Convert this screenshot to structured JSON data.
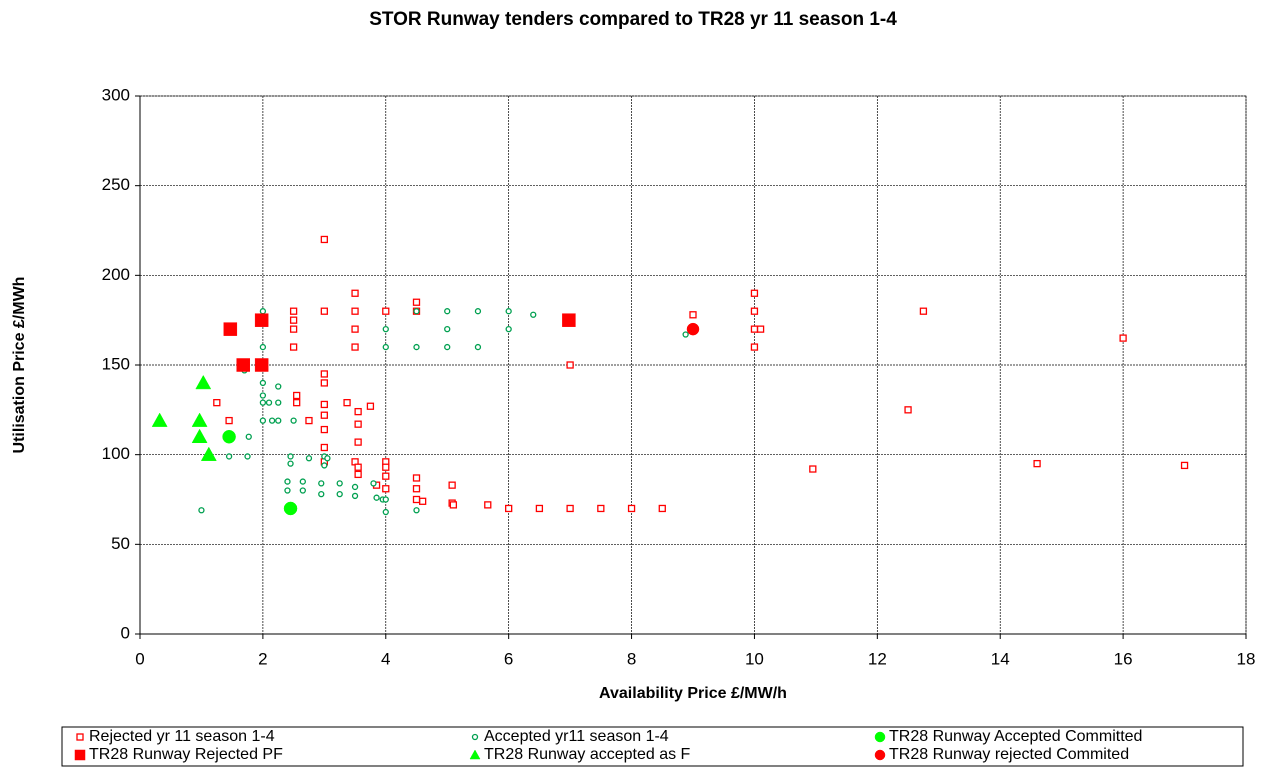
{
  "chart_data": {
    "type": "scatter",
    "title": "STOR Runway tenders compared to TR28 yr 11 season 1-4",
    "x_label": "Availability Price £/MW/h",
    "y_label": "Utilisation Price £/MWh",
    "xlim": [
      0,
      18
    ],
    "xticks": [
      0,
      2,
      4,
      6,
      8,
      10,
      12,
      14,
      16,
      18
    ],
    "ylim": [
      0,
      300
    ],
    "yticks": [
      0,
      50,
      100,
      150,
      200,
      250,
      300
    ],
    "grid": true,
    "legend": "bottom",
    "series": [
      {
        "name": "Rejected yr 11 season 1-4",
        "color": "#ff0000",
        "marker": "square",
        "filled": false,
        "size": 6,
        "x": [
          3,
          2.5,
          2.5,
          2.5,
          2.5,
          3,
          3.5,
          3.5,
          3.5,
          3.5,
          4,
          4.5,
          4.5,
          10,
          10,
          10,
          10.1,
          10,
          12.75,
          16,
          9,
          7,
          12.5,
          10.95,
          14.6,
          17,
          1.25,
          1.45,
          2.55,
          2.55,
          2.75,
          3,
          3,
          3,
          3,
          3,
          3,
          3,
          3.37,
          3.75,
          3.55,
          3.55,
          3.55,
          3.5,
          3.55,
          3.55,
          3.85,
          4,
          4,
          4,
          4,
          4.5,
          4.5,
          4.6,
          4.5,
          5.08,
          5.08,
          5.1,
          5.66,
          6,
          6.5,
          7,
          7.5,
          8,
          8.5
        ],
        "values": [
          220,
          180,
          175,
          170,
          160,
          180,
          190,
          180,
          170,
          160,
          180,
          185,
          180,
          190,
          180,
          170,
          170,
          160,
          180,
          165,
          178,
          150,
          125,
          92,
          95,
          94,
          129,
          119,
          133,
          129,
          119,
          145,
          140,
          128,
          122,
          114,
          104,
          96,
          129,
          127,
          124,
          117,
          107,
          96,
          93,
          89,
          83,
          96,
          93,
          88,
          81,
          87,
          81,
          74,
          75,
          83,
          73,
          72,
          72,
          70,
          70,
          70,
          70,
          70,
          70
        ]
      },
      {
        "name": "Accepted yr11 season 1-4",
        "color": "#00a050",
        "marker": "circle",
        "filled": false,
        "size": 5,
        "x": [
          1,
          1.45,
          1.77,
          1.7,
          1.75,
          2,
          2,
          2,
          2,
          2,
          2,
          2.1,
          2.15,
          2.25,
          2.25,
          2.25,
          2.5,
          2.45,
          2.45,
          2.4,
          2.4,
          2.65,
          2.65,
          2.75,
          2.95,
          2.95,
          3,
          3,
          3.05,
          3.25,
          3.25,
          3.5,
          3.5,
          3.8,
          3.85,
          3.95,
          4,
          4,
          4,
          4,
          4.5,
          4.5,
          4.5,
          5,
          5,
          5,
          5.5,
          5.5,
          6,
          6,
          6.4,
          8.88
        ],
        "values": [
          69,
          99,
          110,
          147,
          99,
          180,
          160,
          140,
          133,
          129,
          119,
          129,
          119,
          119,
          138,
          129,
          119,
          99,
          95,
          85,
          80,
          85,
          80,
          98,
          84,
          78,
          99,
          94,
          98,
          84,
          78,
          82,
          77,
          84,
          76,
          75,
          75,
          68,
          170,
          160,
          180,
          160,
          69,
          180,
          170,
          160,
          180,
          160,
          180,
          170,
          178,
          167
        ]
      },
      {
        "name": "TR28 Runway Accepted Committed",
        "color": "#00ff00",
        "marker": "circle",
        "filled": true,
        "size": 13,
        "x": [
          1.45,
          2.45
        ],
        "values": [
          110,
          70
        ]
      },
      {
        "name": "TR28 Runway Rejected PF",
        "color": "#ff0000",
        "marker": "square",
        "filled": true,
        "size": 13,
        "x": [
          1.47,
          1.68,
          1.98,
          1.98,
          6.98
        ],
        "values": [
          170,
          150,
          175,
          150,
          175
        ]
      },
      {
        "name": "TR28 Runway accepted as F",
        "color": "#00ff00",
        "marker": "triangle",
        "filled": true,
        "size": 15,
        "x": [
          0.32,
          0.97,
          0.97,
          1.03,
          1.12
        ],
        "values": [
          119,
          119,
          110,
          140,
          100
        ]
      },
      {
        "name": "TR28 Runway rejected Commited",
        "color": "#ff0000",
        "marker": "circle",
        "filled": true,
        "size": 12,
        "x": [
          9
        ],
        "values": [
          170
        ]
      }
    ]
  }
}
